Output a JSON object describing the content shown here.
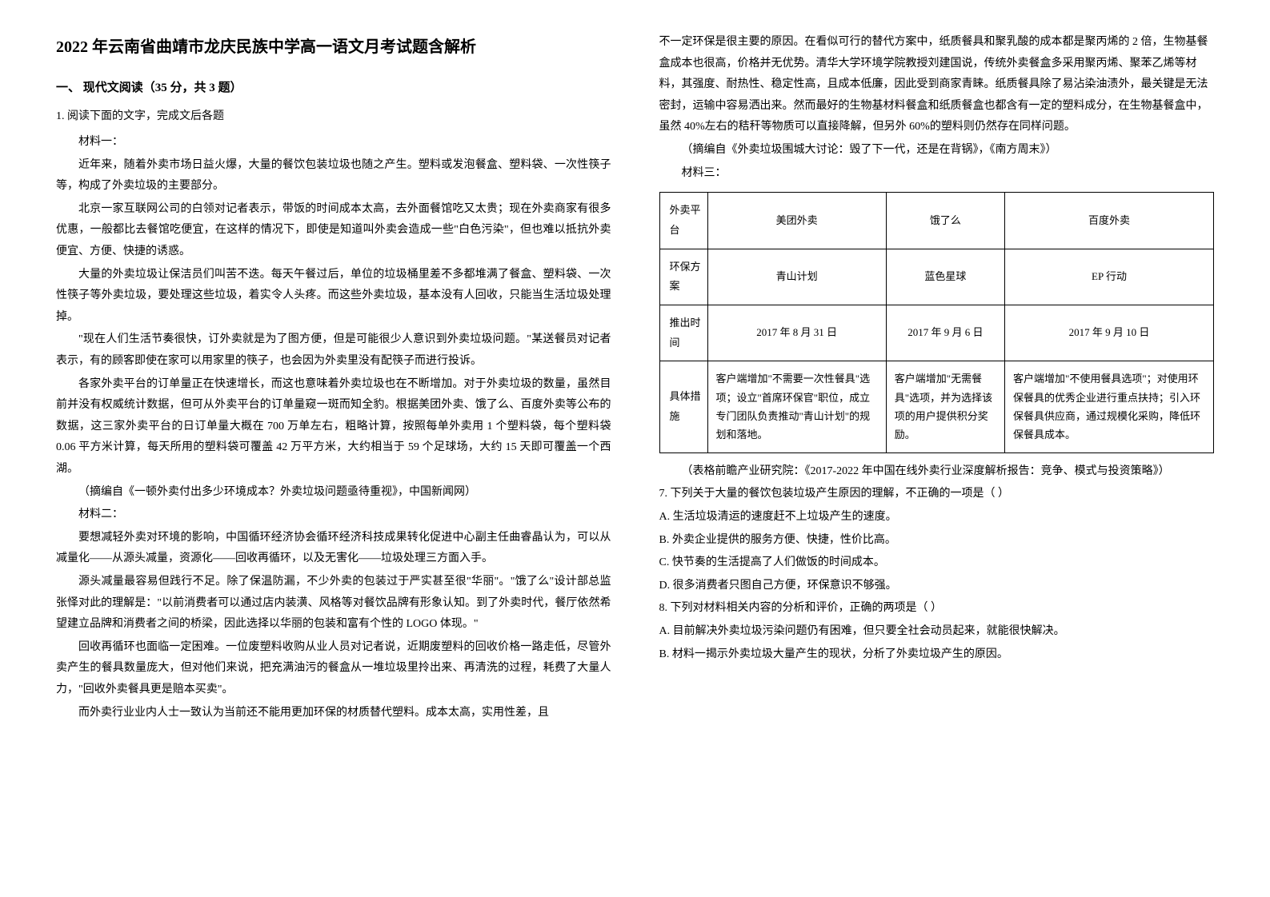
{
  "title": "2022 年云南省曲靖市龙庆民族中学高一语文月考试题含解析",
  "section": "一、 现代文阅读（35 分，共 3 题）",
  "q1_heading": "1. 阅读下面的文字，完成文后各题",
  "m1_label": "材料一：",
  "m1_p1": "近年来，随着外卖市场日益火爆，大量的餐饮包装垃圾也随之产生。塑料或发泡餐盒、塑料袋、一次性筷子等，构成了外卖垃圾的主要部分。",
  "m1_p2": "北京一家互联网公司的白领对记者表示，带饭的时间成本太高，去外面餐馆吃又太贵；现在外卖商家有很多优惠，一般都比去餐馆吃便宜，在这样的情况下，即使是知道叫外卖会造成一些\"白色污染\"，但也难以抵抗外卖便宜、方便、快捷的诱惑。",
  "m1_p3": "大量的外卖垃圾让保洁员们叫苦不迭。每天午餐过后，单位的垃圾桶里差不多都堆满了餐盒、塑料袋、一次性筷子等外卖垃圾，要处理这些垃圾，着实令人头疼。而这些外卖垃圾，基本没有人回收，只能当生活垃圾处理掉。",
  "m1_p4": "\"现在人们生活节奏很快，订外卖就是为了图方便，但是可能很少人意识到外卖垃圾问题。\"某送餐员对记者表示，有的顾客即使在家可以用家里的筷子，也会因为外卖里没有配筷子而进行投诉。",
  "m1_p5": "各家外卖平台的订单量正在快速增长，而这也意味着外卖垃圾也在不断增加。对于外卖垃圾的数量，虽然目前并没有权威统计数据，但可从外卖平台的订单量窥一斑而知全豹。根据美团外卖、饿了么、百度外卖等公布的数据，这三家外卖平台的日订单量大概在 700 万单左右，粗略计算，按照每单外卖用 1 个塑料袋，每个塑料袋 0.06 平方米计算，每天所用的塑料袋可覆盖 42 万平方米，大约相当于 59 个足球场，大约 15 天即可覆盖一个西湖。",
  "m1_source": "（摘编自《一顿外卖付出多少环境成本？外卖垃圾问题亟待重视》，中国新闻网）",
  "m2_label": "材料二：",
  "m2_p1": "要想减轻外卖对环境的影响，中国循环经济协会循环经济科技成果转化促进中心副主任曲睿晶认为，可以从减量化——从源头减量，资源化——回收再循环，以及无害化——垃圾处理三方面入手。",
  "m2_p2": "源头减量最容易但践行不足。除了保温防漏，不少外卖的包装过于严实甚至很\"华丽\"。\"饿了么\"设计部总监张怿对此的理解是：\"以前消费者可以通过店内装潢、风格等对餐饮品牌有形象认知。到了外卖时代，餐厅依然希望建立品牌和消费者之间的桥梁，因此选择以华丽的包装和富有个性的 LOGO 体现。\"",
  "m2_p3": "回收再循环也面临一定困难。一位废塑料收购从业人员对记者说，近期废塑料的回收价格一路走低，尽管外卖产生的餐具数量庞大，但对他们来说，把充满油污的餐盒从一堆垃圾里拎出来、再清洗的过程，耗费了大量人力，\"回收外卖餐具更是赔本买卖\"。",
  "m2_p4": "而外卖行业业内人士一致认为当前还不能用更加环保的材质替代塑料。成本太高，实用性差，且",
  "m2_p5": "不一定环保是很主要的原因。在看似可行的替代方案中，纸质餐具和聚乳酸的成本都是聚丙烯的 2 倍，生物基餐盒成本也很高，价格并无优势。清华大学环境学院教授刘建国说，传统外卖餐盒多采用聚丙烯、聚苯乙烯等材料，其强度、耐热性、稳定性高，且成本低廉，因此受到商家青睐。纸质餐具除了易沾染油渍外，最关键是无法密封，运输中容易洒出来。然而最好的生物基材料餐盒和纸质餐盒也都含有一定的塑料成分，在生物基餐盒中，虽然 40%左右的秸秆等物质可以直接降解，但另外 60%的塑料则仍然存在同样问题。",
  "m2_source": "（摘编自《外卖垃圾围城大讨论：毁了下一代，还是在背锅》，《南方周末》）",
  "m3_label": "材料三：",
  "table": {
    "border_color": "#000000",
    "font_size": 13,
    "rows": [
      {
        "label": "外卖平台",
        "cells": [
          "美团外卖",
          "饿了么",
          "百度外卖"
        ]
      },
      {
        "label": "环保方案",
        "cells": [
          "青山计划",
          "蓝色星球",
          "EP 行动"
        ]
      },
      {
        "label": "推出时间",
        "cells": [
          "2017 年 8 月 31 日",
          "2017 年 9 月 6 日",
          "2017 年 9 月 10 日"
        ]
      },
      {
        "label": "具体措施",
        "cells": [
          "客户端增加\"不需要一次性餐具\"选项；设立\"首席环保官\"职位，成立专门团队负责推动\"青山计划\"的规划和落地。",
          "客户端增加\"无需餐具\"选项，并为选择该项的用户提供积分奖励。",
          "客户端增加\"不使用餐具选项\"；对使用环保餐具的优秀企业进行重点扶持；引入环保餐具供应商，通过规模化采购，降低环保餐具成本。"
        ]
      }
    ]
  },
  "m3_source": "（表格前瞻产业研究院：《2017-2022 年中国在线外卖行业深度解析报告：竞争、模式与投资策略》）",
  "q7": "7. 下列关于大量的餐饮包装垃圾产生原因的理解，不正确的一项是（   ）",
  "q7a": "A. 生活垃圾清运的速度赶不上垃圾产生的速度。",
  "q7b": "B. 外卖企业提供的服务方便、快捷，性价比高。",
  "q7c": "C. 快节奏的生活提高了人们做饭的时间成本。",
  "q7d": "D. 很多消费者只图自己方便，环保意识不够强。",
  "q8": "8. 下列对材料相关内容的分析和评价，正确的两项是（   ）",
  "q8a": "A. 目前解决外卖垃圾污染问题仍有困难，但只要全社会动员起来，就能很快解决。",
  "q8b": "B. 材料一揭示外卖垃圾大量产生的现状，分析了外卖垃圾产生的原因。"
}
